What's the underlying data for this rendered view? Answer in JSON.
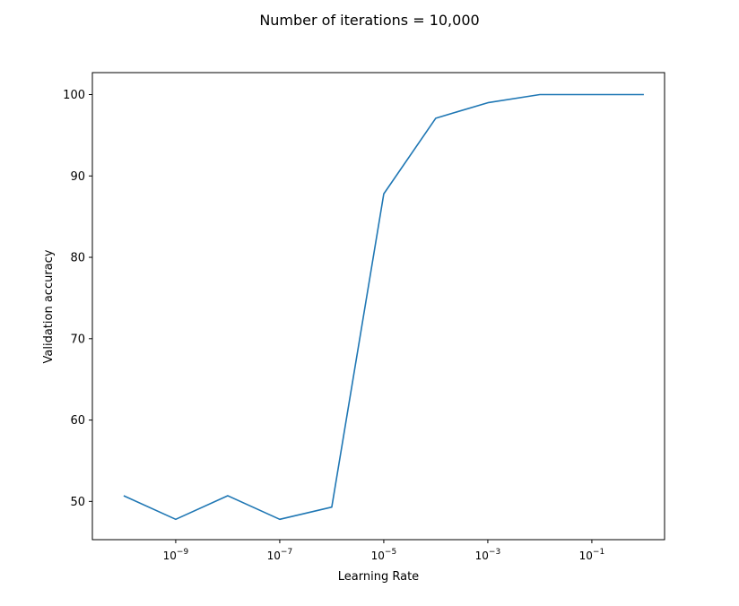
{
  "figure": {
    "suptitle": "Number of iterations = 10,000"
  },
  "chart_data": {
    "type": "line",
    "xscale": "log",
    "xlabel": "Learning Rate",
    "ylabel": "Validation accuracy",
    "xlim": [
      2.5e-11,
      2.5
    ],
    "ylim": [
      45.3,
      102.7
    ],
    "grid": false,
    "xticks": [
      {
        "value": 1e-09,
        "base": "10",
        "exp": "−9"
      },
      {
        "value": 1e-07,
        "base": "10",
        "exp": "−7"
      },
      {
        "value": 1e-05,
        "base": "10",
        "exp": "−5"
      },
      {
        "value": 0.001,
        "base": "10",
        "exp": "−3"
      },
      {
        "value": 0.1,
        "base": "10",
        "exp": "−1"
      }
    ],
    "yticks": [
      50,
      60,
      70,
      80,
      90,
      100
    ],
    "series": [
      {
        "color": "#1f77b4",
        "x": [
          1e-10,
          1e-09,
          1e-08,
          1e-07,
          1e-06,
          1e-05,
          0.0001,
          0.001,
          0.01,
          0.1,
          1
        ],
        "y": [
          50.7,
          47.8,
          50.7,
          47.8,
          49.3,
          87.8,
          97.1,
          99.0,
          100.0,
          100.0,
          100.0
        ]
      }
    ]
  }
}
